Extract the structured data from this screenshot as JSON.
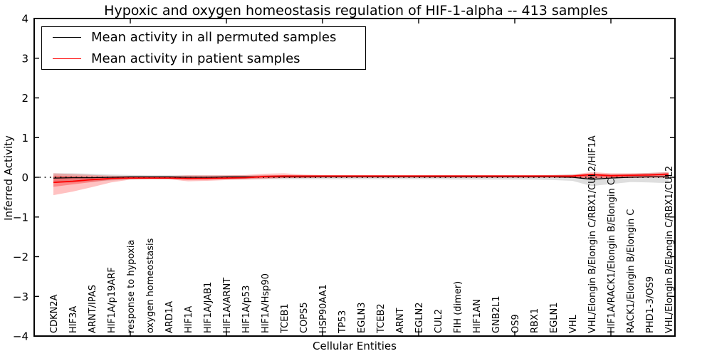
{
  "title": "Hypoxic and oxygen homeostasis regulation of HIF-1-alpha -- 413 samples",
  "legend": {
    "items": [
      {
        "label": "Mean activity in all permuted samples",
        "color": "#000000"
      },
      {
        "label": "Mean activity in patient samples",
        "color": "#ff0000"
      }
    ]
  },
  "chart_data": {
    "type": "line",
    "title": "Hypoxic and oxygen homeostasis regulation of HIF-1-alpha -- 413 samples",
    "xlabel": "Cellular Entities",
    "ylabel": "Inferred Activity",
    "ylim": [
      -4,
      4
    ],
    "yticks": [
      -4,
      -3,
      -2,
      -1,
      0,
      1,
      2,
      3,
      4
    ],
    "xticks_at": [
      5,
      10,
      15,
      20,
      25,
      30
    ],
    "grid": false,
    "legend_position": "upper left",
    "categories": [
      "CDKN2A",
      "HIF3A",
      "ARNT/IPAS",
      "HIF1A/p19ARF",
      "response to hypoxia",
      "oxygen homeostasis",
      "ARD1A",
      "HIF1A",
      "HIF1A/JAB1",
      "HIF1A/ARNT",
      "HIF1A/p53",
      "HIF1A/Hsp90",
      "TCEB1",
      "COPS5",
      "HSP90AA1",
      "TP53",
      "EGLN3",
      "TCEB2",
      "ARNT",
      "EGLN2",
      "CUL2",
      "FIH (dimer)",
      "HIF1AN",
      "GNB2L1",
      "OS9",
      "RBX1",
      "EGLN1",
      "VHL",
      "VHL/Elongin B/Elongin C/RBX1/CUL2/HIF1A",
      "HIF1A/RACK1/Elongin B/Elongin C",
      "RACK1/Elongin B/Elongin C",
      "PHD1-3/OS9",
      "VHL/Elongin B/Elongin C/RBX1/CUL2"
    ],
    "series": [
      {
        "name": "Mean activity in all permuted samples",
        "color": "#000000",
        "width": 1.3,
        "values": [
          -0.02,
          -0.01,
          -0.01,
          0,
          0.01,
          0.01,
          0.01,
          0,
          0,
          0.01,
          0.01,
          0.01,
          0.01,
          0.01,
          0.01,
          0.01,
          0.01,
          0.01,
          0.01,
          0.01,
          0.01,
          0.01,
          0.01,
          0.01,
          0.01,
          0.01,
          0.01,
          0,
          -0.05,
          -0.02,
          0,
          0.01,
          0.01
        ]
      },
      {
        "name": "Mean activity in patient samples",
        "color": "#ff0000",
        "width": 1.8,
        "values": [
          -0.13,
          -0.1,
          -0.06,
          -0.03,
          -0.02,
          -0.02,
          -0.02,
          -0.03,
          -0.03,
          -0.02,
          -0.01,
          0.02,
          0.03,
          0.03,
          0.03,
          0.03,
          0.03,
          0.03,
          0.03,
          0.03,
          0.03,
          0.03,
          0.03,
          0.03,
          0.03,
          0.03,
          0.03,
          0.03,
          0.07,
          0.04,
          0.05,
          0.06,
          0.08
        ]
      }
    ],
    "bands": [
      {
        "name": "permuted-std",
        "color": "#888888",
        "opacity": 0.28,
        "upper": [
          0.1,
          0.1,
          0.09,
          0.07,
          0.06,
          0.05,
          0.05,
          0.05,
          0.05,
          0.05,
          0.05,
          0.05,
          0.05,
          0.05,
          0.05,
          0.05,
          0.05,
          0.05,
          0.05,
          0.05,
          0.05,
          0.05,
          0.05,
          0.05,
          0.05,
          0.05,
          0.06,
          0.07,
          0.09,
          0.08,
          0.09,
          0.11,
          0.13
        ],
        "lower": [
          -0.14,
          -0.13,
          -0.11,
          -0.08,
          -0.06,
          -0.05,
          -0.05,
          -0.05,
          -0.05,
          -0.05,
          -0.05,
          -0.05,
          -0.05,
          -0.05,
          -0.05,
          -0.05,
          -0.05,
          -0.05,
          -0.05,
          -0.05,
          -0.05,
          -0.06,
          -0.06,
          -0.06,
          -0.06,
          -0.06,
          -0.07,
          -0.09,
          -0.22,
          -0.17,
          -0.12,
          -0.13,
          -0.15
        ]
      },
      {
        "name": "patient-std-outer",
        "color": "#ff0000",
        "opacity": 0.24,
        "upper": [
          0.1,
          0.08,
          0.06,
          0.04,
          0.03,
          0.03,
          0.03,
          0.05,
          0.05,
          0.05,
          0.06,
          0.09,
          0.1,
          0.07,
          0.06,
          0.06,
          0.06,
          0.06,
          0.06,
          0.06,
          0.06,
          0.06,
          0.06,
          0.06,
          0.06,
          0.06,
          0.06,
          0.07,
          0.13,
          0.1,
          0.1,
          0.11,
          0.13
        ],
        "lower": [
          -0.45,
          -0.36,
          -0.25,
          -0.13,
          -0.06,
          -0.05,
          -0.05,
          -0.1,
          -0.09,
          -0.07,
          -0.06,
          -0.04,
          -0.02,
          -0.02,
          -0.01,
          -0.01,
          -0.01,
          -0.01,
          -0.01,
          -0.01,
          -0.01,
          -0.01,
          -0.01,
          -0.01,
          -0.01,
          -0.01,
          -0.01,
          -0.02,
          -0.03,
          -0.02,
          -0.02,
          -0.01,
          -0.01
        ]
      },
      {
        "name": "patient-std-inner",
        "color": "#ff0000",
        "opacity": 0.3,
        "upper": [
          0.04,
          0.03,
          0.02,
          0.01,
          0.01,
          0.01,
          0.01,
          0.02,
          0.02,
          0.02,
          0.03,
          0.05,
          0.05,
          0.04,
          0.04,
          0.04,
          0.04,
          0.04,
          0.04,
          0.04,
          0.04,
          0.04,
          0.04,
          0.04,
          0.04,
          0.04,
          0.04,
          0.05,
          0.09,
          0.07,
          0.07,
          0.08,
          0.1
        ],
        "lower": [
          -0.24,
          -0.18,
          -0.12,
          -0.06,
          -0.03,
          -0.03,
          -0.03,
          -0.06,
          -0.05,
          -0.04,
          -0.03,
          -0.02,
          -0.01,
          -0.01,
          0,
          0,
          0,
          0,
          0,
          0,
          0,
          0,
          0,
          0,
          0,
          0,
          0,
          -0.01,
          -0.01,
          -0.01,
          -0.01,
          0,
          0
        ]
      }
    ],
    "zero_line": {
      "style": "dotted",
      "color": "#000000"
    }
  }
}
